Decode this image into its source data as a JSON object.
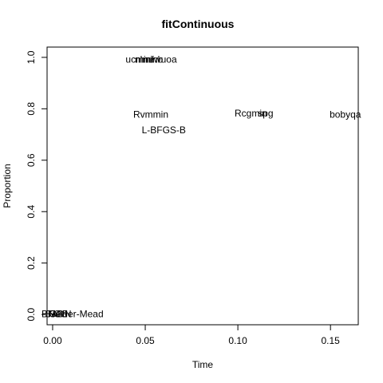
{
  "chart_data": {
    "type": "scatter",
    "title": "fitContinuous",
    "xlabel": "Time",
    "ylabel": "Proportion",
    "xlim": [
      -0.003,
      0.165
    ],
    "ylim": [
      -0.04,
      1.04
    ],
    "xticks": [
      "0.00",
      "0.05",
      "0.10",
      "0.15"
    ],
    "xtick_values": [
      0,
      0.05,
      0.1,
      0.15
    ],
    "yticks": [
      "0.0",
      "0.2",
      "0.4",
      "0.6",
      "0.8",
      "1.0"
    ],
    "ytick_values": [
      0,
      0.2,
      0.4,
      0.6,
      0.8,
      1.0
    ],
    "grid": false,
    "points": [
      {
        "label": "BFGS",
        "x": 0.001,
        "y": 0.0
      },
      {
        "label": "CG",
        "x": 0.002,
        "y": 0.0
      },
      {
        "label": "SANN",
        "x": 0.003,
        "y": 0.0
      },
      {
        "label": "Nelder-Mead",
        "x": 0.0125,
        "y": 0.0
      },
      {
        "label": "ucminf",
        "x": 0.047,
        "y": 0.99
      },
      {
        "label": "nlminb",
        "x": 0.052,
        "y": 0.99
      },
      {
        "label": "newuoa",
        "x": 0.058,
        "y": 0.99
      },
      {
        "label": "Rvmmin",
        "x": 0.053,
        "y": 0.775
      },
      {
        "label": "L-BFGS-B",
        "x": 0.06,
        "y": 0.715
      },
      {
        "label": "Rcgmin",
        "x": 0.107,
        "y": 0.78
      },
      {
        "label": "spg",
        "x": 0.115,
        "y": 0.78
      },
      {
        "label": "bobyqa",
        "x": 0.158,
        "y": 0.775
      }
    ]
  }
}
